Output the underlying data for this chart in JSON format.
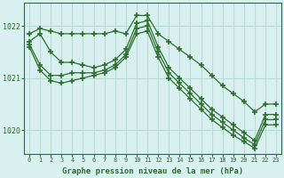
{
  "title": "Graphe pression niveau de la mer (hPa)",
  "bg_color": "#d8f0f0",
  "grid_color": "#b8ddd0",
  "line_color": "#2d6e2d",
  "xlim": [
    -0.5,
    23.5
  ],
  "ylim": [
    1019.55,
    1022.45
  ],
  "yticks": [
    1020,
    1021,
    1022
  ],
  "xticks": [
    0,
    1,
    2,
    3,
    4,
    5,
    6,
    7,
    8,
    9,
    10,
    11,
    12,
    13,
    14,
    15,
    16,
    17,
    18,
    19,
    20,
    21,
    22,
    23
  ],
  "series": [
    [
      1021.85,
      1021.95,
      1021.9,
      1021.85,
      1021.85,
      1021.85,
      1021.85,
      1021.85,
      1021.9,
      1021.85,
      1022.2,
      1022.2,
      1021.85,
      1021.7,
      1021.55,
      1021.4,
      1021.25,
      1021.05,
      1020.85,
      1020.7,
      1020.55,
      1020.35,
      1020.5,
      1020.5
    ],
    [
      1021.7,
      1021.85,
      1021.5,
      1021.3,
      1021.3,
      1021.25,
      1021.2,
      1021.25,
      1021.35,
      1021.55,
      1022.05,
      1022.1,
      1021.6,
      1021.2,
      1021.0,
      1020.8,
      1020.6,
      1020.4,
      1020.25,
      1020.1,
      1019.95,
      1019.8,
      1020.3,
      1020.3
    ],
    [
      1021.65,
      1021.25,
      1021.05,
      1021.05,
      1021.1,
      1021.1,
      1021.1,
      1021.15,
      1021.25,
      1021.45,
      1021.95,
      1022.0,
      1021.5,
      1021.1,
      1020.9,
      1020.7,
      1020.5,
      1020.3,
      1020.15,
      1020.0,
      1019.85,
      1019.72,
      1020.2,
      1020.2
    ],
    [
      1021.6,
      1021.15,
      1020.95,
      1020.9,
      1020.95,
      1021.0,
      1021.05,
      1021.1,
      1021.2,
      1021.4,
      1021.85,
      1021.9,
      1021.4,
      1021.0,
      1020.8,
      1020.6,
      1020.4,
      1020.2,
      1020.05,
      1019.9,
      1019.78,
      1019.65,
      1020.1,
      1020.1
    ]
  ]
}
